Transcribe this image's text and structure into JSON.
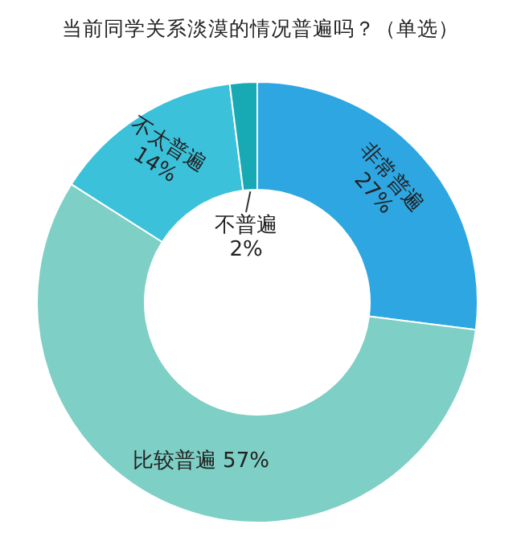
{
  "chart_data": {
    "type": "donut",
    "title": "当前同学关系淡漠的情况普遍吗？（单选）",
    "categories": [
      "非常普遍",
      "比较普遍",
      "不太普遍",
      "不普遍"
    ],
    "values": [
      27,
      57,
      14,
      2
    ],
    "value_labels": [
      "27%",
      "57%",
      "14%",
      "2%"
    ],
    "colors": [
      "#2ea6e1",
      "#7ecfc5",
      "#3cc1da",
      "#17a9b4"
    ],
    "legend": false
  }
}
